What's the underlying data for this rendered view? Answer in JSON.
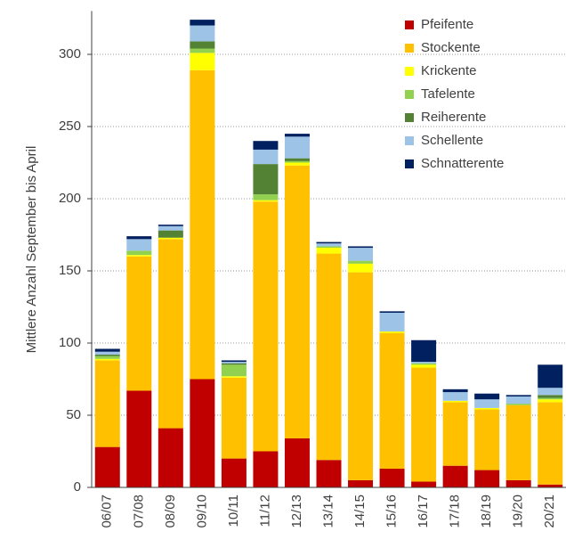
{
  "chart_data": {
    "type": "stacked_bar",
    "y_axis_label": "Mittlere Anzahl September bis April",
    "categories": [
      "06/07",
      "07/08",
      "08/09",
      "09/10",
      "10/11",
      "11/12",
      "12/13",
      "13/14",
      "14/15",
      "15/16",
      "16/17",
      "17/18",
      "18/19",
      "19/20",
      "20/21"
    ],
    "series": [
      {
        "name": "Pfeifente",
        "color": "#c00000",
        "values": [
          28,
          67,
          41,
          75,
          20,
          25,
          34,
          19,
          5,
          13,
          4,
          15,
          12,
          5,
          2
        ]
      },
      {
        "name": "Stockente",
        "color": "#ffc000",
        "values": [
          60,
          93,
          131,
          214,
          56,
          173,
          189,
          143,
          144,
          94,
          79,
          44,
          42,
          52,
          57
        ]
      },
      {
        "name": "Krickente",
        "color": "#ffff00",
        "values": [
          1,
          1,
          1,
          12,
          1,
          1,
          2,
          4,
          6,
          1,
          2,
          1,
          1,
          0,
          2
        ]
      },
      {
        "name": "Tafelente",
        "color": "#92d050",
        "values": [
          2,
          3,
          0,
          3,
          8,
          4,
          1,
          1,
          2,
          0,
          1,
          0,
          0,
          1,
          1
        ]
      },
      {
        "name": "Reiherente",
        "color": "#548235",
        "values": [
          1,
          0,
          5,
          5,
          1,
          21,
          2,
          0,
          0,
          0,
          0,
          0,
          0,
          0,
          2
        ]
      },
      {
        "name": "Schellente",
        "color": "#9dc3e6",
        "values": [
          2,
          8,
          3,
          11,
          1,
          10,
          15,
          2,
          9,
          13,
          1,
          6,
          6,
          5,
          5
        ]
      },
      {
        "name": "Schnatterente",
        "color": "#002060",
        "values": [
          2,
          2,
          1,
          4,
          1,
          6,
          2,
          1,
          1,
          1,
          15,
          2,
          4,
          1,
          16
        ]
      }
    ],
    "ylim": [
      0,
      330
    ],
    "yticks": [
      0,
      50,
      100,
      150,
      200,
      250,
      300
    ],
    "grid": true,
    "legend": "top-right"
  }
}
